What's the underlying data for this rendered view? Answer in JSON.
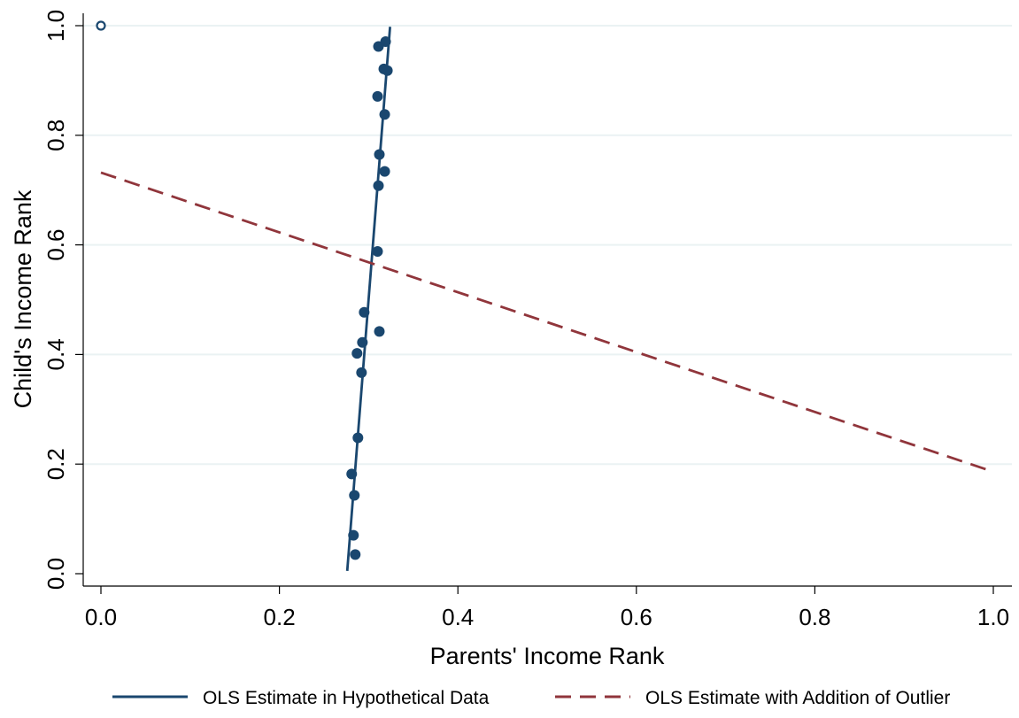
{
  "colors": {
    "navy": "#1a476f",
    "maroon": "#90353b",
    "grid": "#eaf2f3",
    "axis": "#000000",
    "background": "#ffffff"
  },
  "chart_data": {
    "type": "scatter",
    "xlabel": "Parents' Income Rank",
    "ylabel": "Child's Income Rank",
    "xlim": [
      -0.02,
      1.02
    ],
    "ylim": [
      -0.02,
      1.02
    ],
    "x_ticks": [
      0.0,
      0.2,
      0.4,
      0.6,
      0.8,
      1.0
    ],
    "x_tick_labels": [
      "0.0",
      "0.2",
      "0.4",
      "0.6",
      "0.8",
      "1.0"
    ],
    "y_ticks": [
      0.0,
      0.2,
      0.4,
      0.6,
      0.8,
      1.0
    ],
    "y_tick_labels": [
      "0.0",
      "0.2",
      "0.4",
      "0.6",
      "0.8",
      "1.0"
    ],
    "grid": "horizontal",
    "legend_position": "bottom",
    "points": [
      {
        "x": 0.311,
        "y": 0.962
      },
      {
        "x": 0.319,
        "y": 0.971
      },
      {
        "x": 0.317,
        "y": 0.921
      },
      {
        "x": 0.321,
        "y": 0.918
      },
      {
        "x": 0.31,
        "y": 0.871
      },
      {
        "x": 0.318,
        "y": 0.838
      },
      {
        "x": 0.312,
        "y": 0.765
      },
      {
        "x": 0.318,
        "y": 0.734
      },
      {
        "x": 0.311,
        "y": 0.708
      },
      {
        "x": 0.31,
        "y": 0.588
      },
      {
        "x": 0.295,
        "y": 0.477
      },
      {
        "x": 0.312,
        "y": 0.442
      },
      {
        "x": 0.293,
        "y": 0.422
      },
      {
        "x": 0.287,
        "y": 0.402
      },
      {
        "x": 0.292,
        "y": 0.367
      },
      {
        "x": 0.288,
        "y": 0.248
      },
      {
        "x": 0.281,
        "y": 0.182
      },
      {
        "x": 0.284,
        "y": 0.143
      },
      {
        "x": 0.283,
        "y": 0.07
      },
      {
        "x": 0.285,
        "y": 0.035
      }
    ],
    "outlier": {
      "x": 0.0,
      "y": 1.0
    },
    "series": [
      {
        "name": "OLS Estimate in Hypothetical Data",
        "style": "solid",
        "color": "#1a476f",
        "x": [
          0.276,
          0.324
        ],
        "y": [
          0.005,
          0.998
        ]
      },
      {
        "name": "OLS Estimate with Addition of Outlier",
        "style": "dashed",
        "color": "#90353b",
        "x": [
          0.0,
          1.0
        ],
        "y": [
          0.732,
          0.186
        ]
      }
    ]
  }
}
